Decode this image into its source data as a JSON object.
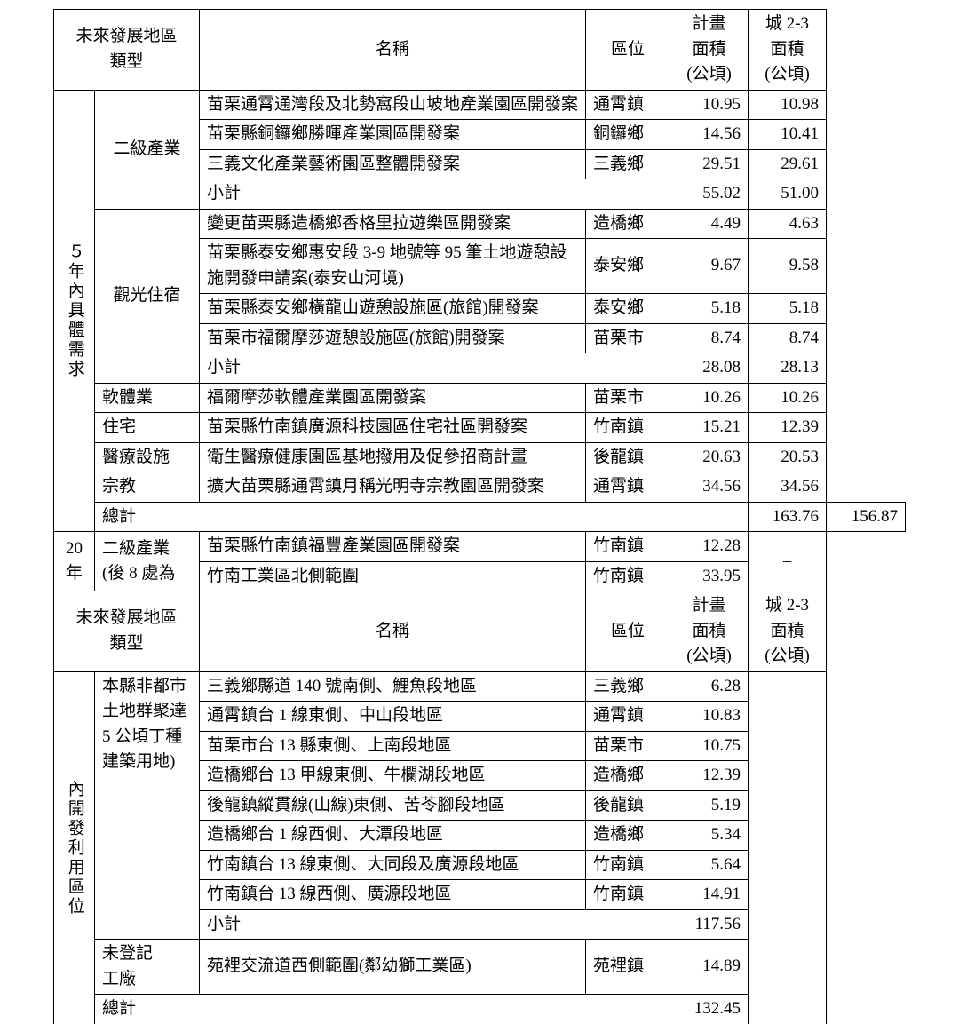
{
  "columns": {
    "c1c2": "未來發展地區\n類型",
    "c3": "名稱",
    "c4": "區位",
    "c5": "計畫\n面積\n(公頃)",
    "c6": "城 2-3\n面積\n(公頃)"
  },
  "section1": {
    "timeLabel": "５年內具體需求",
    "groups": [
      {
        "type": "二級產業",
        "rows": [
          {
            "name": "苗栗通霄通灣段及北勢窩段山坡地產業園區開發案",
            "loc": "通霄鎮",
            "a": "10.95",
            "b": "10.98"
          },
          {
            "name": "苗栗縣銅鑼鄉勝暉產業園區開發案",
            "loc": "銅鑼鄉",
            "a": "14.56",
            "b": "10.41"
          },
          {
            "name": "三義文化產業藝術園區整體開發案",
            "loc": "三義鄉",
            "a": "29.51",
            "b": "29.61"
          }
        ],
        "subtotal": {
          "label": "小計",
          "a": "55.02",
          "b": "51.00"
        }
      },
      {
        "type": "觀光住宿",
        "rows": [
          {
            "name": "變更苗栗縣造橋鄉香格里拉遊樂區開發案",
            "loc": "造橋鄉",
            "a": "4.49",
            "b": "4.63"
          },
          {
            "name": "苗栗縣泰安鄉惠安段 3-9 地號等 95 筆土地遊憩設施開發申請案(泰安山河境)",
            "loc": "泰安鄉",
            "a": "9.67",
            "b": "9.58"
          },
          {
            "name": "苗栗縣泰安鄉橫龍山遊憩設施區(旅館)開發案",
            "loc": "泰安鄉",
            "a": "5.18",
            "b": "5.18"
          },
          {
            "name": "苗栗市福爾摩莎遊憩設施區(旅館)開發案",
            "loc": "苗栗市",
            "a": "8.74",
            "b": "8.74"
          }
        ],
        "subtotal": {
          "label": "小計",
          "a": "28.08",
          "b": "28.13"
        }
      },
      {
        "type": "軟體業",
        "rows": [
          {
            "name": "福爾摩莎軟體產業園區開發案",
            "loc": "苗栗市",
            "a": "10.26",
            "b": "10.26"
          }
        ]
      },
      {
        "type": "住宅",
        "rows": [
          {
            "name": "苗栗縣竹南鎮廣源科技園區住宅社區開發案",
            "loc": "竹南鎮",
            "a": "15.21",
            "b": "12.39"
          }
        ]
      },
      {
        "type": "醫療設施",
        "rows": [
          {
            "name": "衛生醫療健康園區基地撥用及促參招商計畫",
            "loc": "後龍鎮",
            "a": "20.63",
            "b": "20.53"
          }
        ]
      },
      {
        "type": "宗教",
        "rows": [
          {
            "name": "擴大苗栗縣通霄鎮月稱光明寺宗教園區開發案",
            "loc": "通霄鎮",
            "a": "34.56",
            "b": "34.56"
          }
        ]
      }
    ],
    "total": {
      "label": "總計",
      "a": "163.76",
      "b": "156.87"
    }
  },
  "section2": {
    "timeLabel": "20\n年",
    "typeLabel": "二級產業\n(後 8 處為",
    "rows": [
      {
        "name": "苗栗縣竹南鎮福豐產業園區開發案",
        "loc": "竹南鎮",
        "a": "12.28"
      },
      {
        "name": "竹南工業區北側範圍",
        "loc": "竹南鎮",
        "a": "33.95"
      }
    ],
    "dash": "–"
  },
  "section3": {
    "leftLabel": "內開發利用區位",
    "typeLabel": "本縣非都市\n土地群聚達\n5 公頃丁種\n建築用地)",
    "rows": [
      {
        "name": "三義鄉縣道 140 號南側、鯉魚段地區",
        "loc": "三義鄉",
        "a": "6.28"
      },
      {
        "name": "通霄鎮台 1 線東側、中山段地區",
        "loc": "通霄鎮",
        "a": "10.83"
      },
      {
        "name": "苗栗市台 13 縣東側、上南段地區",
        "loc": "苗栗市",
        "a": "10.75"
      },
      {
        "name": "造橋鄉台 13 甲線東側、牛欄湖段地區",
        "loc": "造橋鄉",
        "a": "12.39"
      },
      {
        "name": "後龍鎮縱貫線(山線)東側、苦苓腳段地區",
        "loc": "後龍鎮",
        "a": "5.19"
      },
      {
        "name": "造橋鄉台 1 線西側、大潭段地區",
        "loc": "造橋鄉",
        "a": "5.34"
      },
      {
        "name": "竹南鎮台 13 線東側、大同段及廣源段地區",
        "loc": "竹南鎮",
        "a": "5.64"
      },
      {
        "name": "竹南鎮台 13 線西側、廣源段地區",
        "loc": "竹南鎮",
        "a": "14.91"
      }
    ],
    "subtotal": {
      "label": "小計",
      "a": "117.56"
    },
    "group2": {
      "type": "未登記\n工廠",
      "row": {
        "name": "苑裡交流道西側範圍(鄰幼獅工業區)",
        "loc": "苑裡鎮",
        "a": "14.89"
      }
    },
    "total": {
      "label": "總計",
      "a": "132.45"
    }
  }
}
